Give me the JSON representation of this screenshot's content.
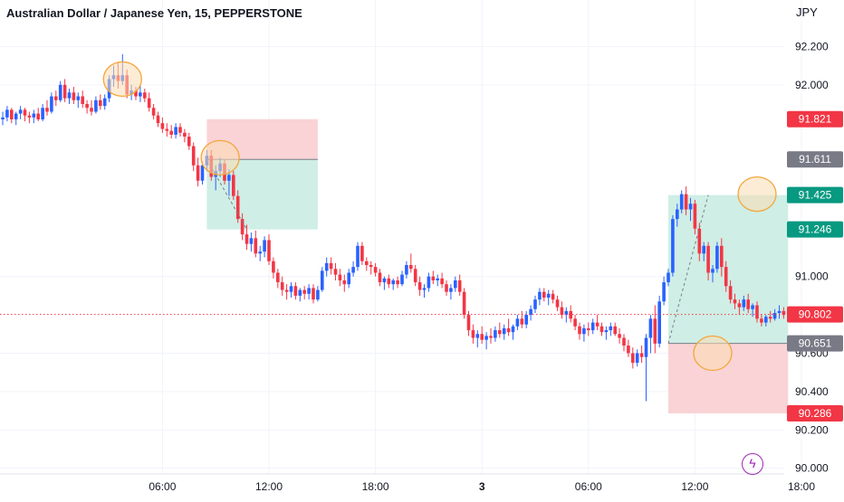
{
  "header": {
    "title": "Australian Dollar / Japanese Yen, 15, PEPPERSTONE",
    "currency": "JPY"
  },
  "colors": {
    "up": "#2962ff",
    "down": "#f23645",
    "target_zone": "#cfeee5",
    "stop_zone": "#f9d3d6",
    "circle_fill": "#fbdcb3",
    "circle_stroke": "#f4a63c",
    "current_price": "#f23645",
    "grid": "#f0f3fa"
  },
  "icons": {
    "flash": "flash-icon"
  },
  "chart_data": {
    "type": "candlestick",
    "title": "Australian Dollar / Japanese Yen, 15, PEPPERSTONE",
    "ylabel": "JPY",
    "ylim": [
      89.97,
      92.32
    ],
    "y_ticks": [
      "92.200",
      "92.000",
      "91.000",
      "90.600",
      "90.400",
      "90.200",
      "90.000"
    ],
    "x_ticks": [
      {
        "label": "06:00",
        "bar": 36
      },
      {
        "label": "12:00",
        "bar": 60
      },
      {
        "label": "18:00",
        "bar": 84
      },
      {
        "label": "3",
        "bar": 108
      },
      {
        "label": "06:00",
        "bar": 132
      },
      {
        "label": "12:00",
        "bar": 156
      },
      {
        "label": "18:00",
        "bar": 180
      }
    ],
    "grid": true,
    "price_labels": [
      {
        "value": 91.821,
        "label": "91.821",
        "color": "#f23645"
      },
      {
        "value": 91.611,
        "label": "91.611",
        "color": "#787b86"
      },
      {
        "value": 91.425,
        "label": "91.425",
        "color": "#089981"
      },
      {
        "value": 91.246,
        "label": "91.246",
        "color": "#089981"
      },
      {
        "value": 90.802,
        "label": "90.802",
        "color": "#f23645"
      },
      {
        "value": 90.651,
        "label": "90.651",
        "color": "#787b86"
      },
      {
        "value": 90.286,
        "label": "90.286",
        "color": "#f23645"
      }
    ],
    "current_price": 90.802,
    "positions": [
      {
        "direction": "short",
        "start_bar": 46,
        "end_bar": 71,
        "entry": 91.611,
        "stop": 91.821,
        "target": 91.246
      },
      {
        "direction": "long",
        "start_bar": 150,
        "end_bar": 177,
        "entry": 90.651,
        "stop": 90.286,
        "target": 91.425
      }
    ],
    "highlights": [
      {
        "bar": 27,
        "price": 92.03
      },
      {
        "bar": 49,
        "price": 91.62
      },
      {
        "bar": 160,
        "price": 90.6
      },
      {
        "bar": 170,
        "price": 91.43
      }
    ],
    "candles": [
      [
        91.82,
        91.86,
        91.79,
        91.83
      ],
      [
        91.83,
        91.89,
        91.81,
        91.87
      ],
      [
        91.87,
        91.88,
        91.8,
        91.82
      ],
      [
        91.82,
        91.86,
        91.79,
        91.85
      ],
      [
        91.85,
        91.89,
        91.82,
        91.87
      ],
      [
        91.87,
        91.88,
        91.81,
        91.84
      ],
      [
        91.84,
        91.86,
        91.8,
        91.83
      ],
      [
        91.83,
        91.87,
        91.8,
        91.85
      ],
      [
        91.85,
        91.88,
        91.81,
        91.82
      ],
      [
        91.82,
        91.9,
        91.81,
        91.88
      ],
      [
        91.88,
        91.92,
        91.84,
        91.86
      ],
      [
        91.86,
        91.96,
        91.85,
        91.94
      ],
      [
        91.94,
        91.97,
        91.89,
        91.92
      ],
      [
        91.92,
        92.02,
        91.91,
        92.0
      ],
      [
        92.0,
        92.03,
        91.91,
        91.93
      ],
      [
        91.93,
        91.98,
        91.9,
        91.96
      ],
      [
        91.96,
        91.99,
        91.9,
        91.92
      ],
      [
        91.92,
        91.96,
        91.88,
        91.94
      ],
      [
        91.94,
        91.97,
        91.88,
        91.9
      ],
      [
        91.9,
        91.92,
        91.85,
        91.88
      ],
      [
        91.88,
        91.92,
        91.84,
        91.86
      ],
      [
        91.86,
        91.94,
        91.85,
        91.92
      ],
      [
        91.92,
        91.95,
        91.87,
        91.89
      ],
      [
        91.89,
        91.95,
        91.87,
        91.93
      ],
      [
        91.93,
        92.05,
        91.91,
        92.03
      ],
      [
        92.03,
        92.1,
        91.99,
        92.05
      ],
      [
        92.05,
        92.12,
        91.98,
        92.02
      ],
      [
        92.02,
        92.16,
        92.0,
        92.05
      ],
      [
        92.05,
        92.08,
        91.93,
        91.95
      ],
      [
        91.95,
        92.0,
        91.92,
        91.97
      ],
      [
        91.97,
        91.99,
        91.92,
        91.94
      ],
      [
        91.94,
        92.0,
        91.91,
        91.96
      ],
      [
        91.96,
        91.98,
        91.91,
        91.93
      ],
      [
        91.93,
        91.96,
        91.86,
        91.88
      ],
      [
        91.88,
        91.9,
        91.82,
        91.84
      ],
      [
        91.84,
        91.86,
        91.78,
        91.8
      ],
      [
        91.8,
        91.83,
        91.75,
        91.77
      ],
      [
        91.77,
        91.8,
        91.73,
        91.76
      ],
      [
        91.76,
        91.79,
        91.72,
        91.74
      ],
      [
        91.74,
        91.8,
        91.72,
        91.78
      ],
      [
        91.78,
        91.8,
        91.73,
        91.75
      ],
      [
        91.75,
        91.77,
        91.7,
        91.73
      ],
      [
        91.73,
        91.75,
        91.66,
        91.68
      ],
      [
        91.68,
        91.7,
        91.55,
        91.58
      ],
      [
        91.58,
        91.62,
        91.47,
        91.5
      ],
      [
        91.5,
        91.6,
        91.48,
        91.58
      ],
      [
        91.58,
        91.66,
        91.55,
        91.63
      ],
      [
        91.63,
        91.66,
        91.5,
        91.52
      ],
      [
        91.52,
        91.58,
        91.45,
        91.55
      ],
      [
        91.55,
        91.62,
        91.52,
        91.59
      ],
      [
        91.59,
        91.61,
        91.48,
        91.5
      ],
      [
        91.5,
        91.56,
        91.42,
        91.53
      ],
      [
        91.53,
        91.55,
        91.4,
        91.42
      ],
      [
        91.42,
        91.45,
        91.28,
        91.3
      ],
      [
        91.3,
        91.33,
        91.19,
        91.22
      ],
      [
        91.22,
        91.27,
        91.14,
        91.17
      ],
      [
        91.17,
        91.23,
        91.13,
        91.2
      ],
      [
        91.2,
        91.24,
        91.1,
        91.12
      ],
      [
        91.12,
        91.16,
        91.08,
        91.13
      ],
      [
        91.13,
        91.21,
        91.1,
        91.19
      ],
      [
        91.19,
        91.22,
        91.06,
        91.08
      ],
      [
        91.08,
        91.1,
        90.99,
        91.02
      ],
      [
        91.02,
        91.04,
        90.94,
        90.97
      ],
      [
        90.97,
        91.0,
        90.9,
        90.93
      ],
      [
        90.93,
        90.96,
        90.88,
        90.92
      ],
      [
        90.92,
        90.97,
        90.89,
        90.95
      ],
      [
        90.95,
        90.97,
        90.88,
        90.9
      ],
      [
        90.9,
        90.94,
        90.87,
        90.93
      ],
      [
        90.93,
        90.95,
        90.88,
        90.91
      ],
      [
        90.91,
        90.96,
        90.88,
        90.94
      ],
      [
        90.94,
        90.96,
        90.86,
        90.88
      ],
      [
        90.88,
        90.95,
        90.87,
        90.93
      ],
      [
        90.93,
        91.05,
        90.92,
        91.03
      ],
      [
        91.03,
        91.1,
        91.0,
        91.07
      ],
      [
        91.07,
        91.1,
        91.01,
        91.04
      ],
      [
        91.04,
        91.07,
        90.98,
        91.01
      ],
      [
        91.01,
        91.04,
        90.95,
        90.98
      ],
      [
        90.98,
        91.01,
        90.92,
        90.96
      ],
      [
        90.96,
        91.04,
        90.94,
        91.02
      ],
      [
        91.02,
        91.08,
        91.0,
        91.05
      ],
      [
        91.05,
        91.18,
        91.03,
        91.16
      ],
      [
        91.16,
        91.18,
        91.06,
        91.08
      ],
      [
        91.08,
        91.1,
        91.03,
        91.06
      ],
      [
        91.06,
        91.08,
        91.01,
        91.05
      ],
      [
        91.05,
        91.07,
        91.0,
        91.02
      ],
      [
        91.02,
        91.04,
        90.95,
        90.97
      ],
      [
        90.97,
        91.0,
        90.93,
        90.99
      ],
      [
        90.99,
        91.01,
        90.94,
        90.96
      ],
      [
        90.96,
        90.99,
        90.93,
        90.98
      ],
      [
        90.98,
        91.0,
        90.94,
        90.96
      ],
      [
        90.96,
        91.03,
        90.95,
        91.01
      ],
      [
        91.01,
        91.08,
        90.99,
        91.06
      ],
      [
        91.06,
        91.12,
        91.02,
        91.04
      ],
      [
        91.04,
        91.06,
        90.95,
        90.97
      ],
      [
        90.97,
        91.0,
        90.9,
        90.93
      ],
      [
        90.93,
        90.96,
        90.89,
        90.94
      ],
      [
        90.94,
        91.02,
        90.92,
        91.0
      ],
      [
        91.0,
        91.03,
        90.96,
        90.98
      ],
      [
        90.98,
        91.01,
        90.95,
        90.99
      ],
      [
        90.99,
        91.02,
        90.94,
        90.96
      ],
      [
        90.96,
        90.98,
        90.9,
        90.92
      ],
      [
        90.92,
        90.96,
        90.88,
        90.94
      ],
      [
        90.94,
        91.0,
        90.92,
        90.98
      ],
      [
        90.98,
        91.01,
        90.9,
        90.92
      ],
      [
        90.92,
        90.94,
        90.78,
        90.8
      ],
      [
        90.8,
        90.82,
        90.69,
        90.72
      ],
      [
        90.72,
        90.75,
        90.65,
        90.68
      ],
      [
        90.68,
        90.72,
        90.63,
        90.7
      ],
      [
        90.7,
        90.74,
        90.65,
        90.67
      ],
      [
        90.67,
        90.71,
        90.62,
        90.69
      ],
      [
        90.69,
        90.73,
        90.65,
        90.68
      ],
      [
        90.68,
        90.74,
        90.66,
        90.72
      ],
      [
        90.72,
        90.76,
        90.68,
        90.7
      ],
      [
        90.7,
        90.75,
        90.67,
        90.73
      ],
      [
        90.73,
        90.78,
        90.69,
        90.71
      ],
      [
        90.71,
        90.75,
        90.67,
        90.74
      ],
      [
        90.74,
        90.8,
        90.72,
        90.78
      ],
      [
        90.78,
        90.82,
        90.73,
        90.75
      ],
      [
        90.75,
        90.82,
        90.73,
        90.8
      ],
      [
        90.8,
        90.85,
        90.77,
        90.83
      ],
      [
        90.83,
        90.9,
        90.81,
        90.88
      ],
      [
        90.88,
        90.94,
        90.85,
        90.92
      ],
      [
        90.92,
        90.94,
        90.87,
        90.89
      ],
      [
        90.89,
        90.93,
        90.85,
        90.91
      ],
      [
        90.91,
        90.93,
        90.86,
        90.88
      ],
      [
        90.88,
        90.9,
        90.82,
        90.84
      ],
      [
        90.84,
        90.87,
        90.78,
        90.8
      ],
      [
        90.8,
        90.84,
        90.76,
        90.82
      ],
      [
        90.82,
        90.85,
        90.76,
        90.78
      ],
      [
        90.78,
        90.8,
        90.72,
        90.74
      ],
      [
        90.74,
        90.76,
        90.67,
        90.7
      ],
      [
        90.7,
        90.75,
        90.66,
        90.73
      ],
      [
        90.73,
        90.76,
        90.69,
        90.72
      ],
      [
        90.72,
        90.78,
        90.7,
        90.76
      ],
      [
        90.76,
        90.8,
        90.72,
        90.74
      ],
      [
        90.74,
        90.76,
        90.69,
        90.71
      ],
      [
        90.71,
        90.74,
        90.67,
        90.72
      ],
      [
        90.72,
        90.76,
        90.69,
        90.74
      ],
      [
        90.74,
        90.76,
        90.69,
        90.7
      ],
      [
        90.7,
        90.73,
        90.65,
        90.68
      ],
      [
        90.68,
        90.7,
        90.61,
        90.64
      ],
      [
        90.64,
        90.67,
        90.58,
        90.6
      ],
      [
        90.6,
        90.63,
        90.52,
        90.55
      ],
      [
        90.55,
        90.62,
        90.53,
        90.6
      ],
      [
        90.6,
        90.64,
        90.55,
        90.58
      ],
      [
        90.58,
        90.7,
        90.35,
        90.68
      ],
      [
        90.68,
        90.8,
        90.6,
        90.78
      ],
      [
        90.78,
        90.85,
        90.6,
        90.65
      ],
      [
        90.65,
        90.9,
        90.63,
        90.87
      ],
      [
        90.87,
        91.0,
        90.85,
        90.97
      ],
      [
        90.97,
        91.04,
        90.95,
        91.02
      ],
      [
        91.02,
        91.32,
        91.0,
        91.3
      ],
      [
        91.3,
        91.38,
        91.26,
        91.35
      ],
      [
        91.35,
        91.45,
        91.33,
        91.43
      ],
      [
        91.43,
        91.47,
        91.32,
        91.35
      ],
      [
        91.35,
        91.41,
        91.29,
        91.38
      ],
      [
        91.38,
        91.4,
        91.22,
        91.25
      ],
      [
        91.25,
        91.28,
        91.08,
        91.12
      ],
      [
        91.12,
        91.18,
        91.08,
        91.16
      ],
      [
        91.16,
        91.18,
        90.98,
        91.02
      ],
      [
        91.02,
        91.06,
        90.97,
        91.04
      ],
      [
        91.04,
        91.18,
        91.02,
        91.16
      ],
      [
        91.16,
        91.2,
        91.0,
        91.05
      ],
      [
        91.05,
        91.08,
        90.92,
        90.95
      ],
      [
        90.95,
        90.98,
        90.86,
        90.88
      ],
      [
        90.88,
        90.91,
        90.83,
        90.86
      ],
      [
        90.86,
        90.88,
        90.8,
        90.84
      ],
      [
        90.84,
        90.9,
        90.82,
        90.88
      ],
      [
        90.88,
        90.91,
        90.81,
        90.83
      ],
      [
        90.83,
        90.86,
        90.79,
        90.85
      ],
      [
        90.85,
        90.87,
        90.76,
        90.78
      ],
      [
        90.78,
        90.8,
        90.74,
        90.76
      ],
      [
        90.76,
        90.8,
        90.74,
        90.79
      ],
      [
        90.79,
        90.82,
        90.76,
        90.78
      ],
      [
        90.78,
        90.83,
        90.77,
        90.81
      ],
      [
        90.81,
        90.85,
        90.78,
        90.82
      ],
      [
        90.82,
        90.84,
        90.78,
        90.8
      ]
    ]
  }
}
